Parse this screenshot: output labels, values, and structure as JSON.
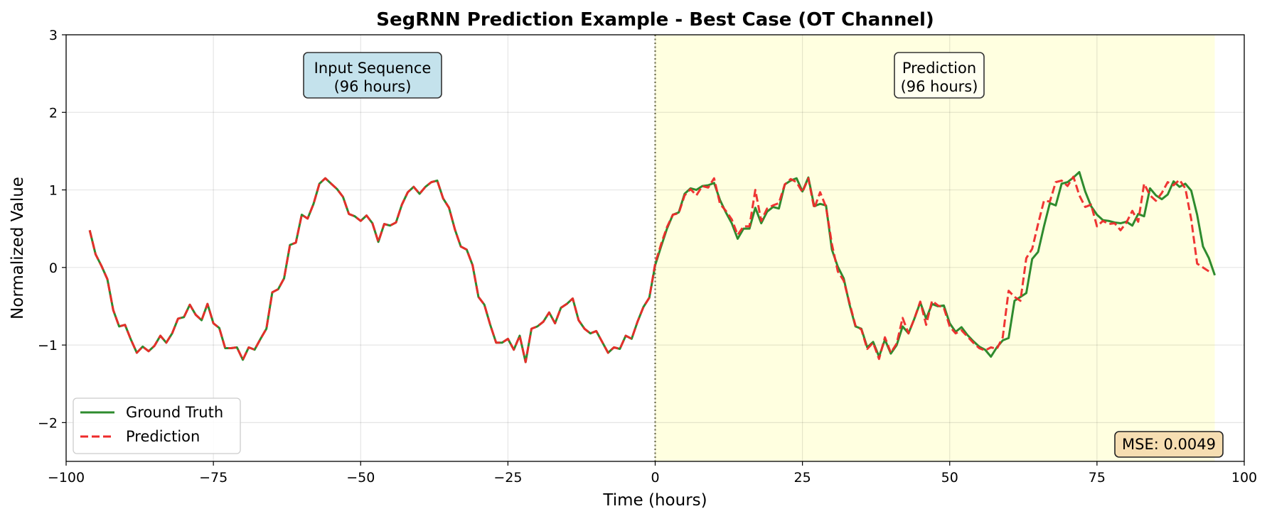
{
  "chart_data": {
    "type": "line",
    "title": "SegRNN Prediction Example - Best Case (OT Channel)",
    "xlabel": "Time (hours)",
    "ylabel": "Normalized Value",
    "xlim": [
      -100,
      100
    ],
    "ylim": [
      -2.5,
      3
    ],
    "xticks": [
      -100,
      -75,
      -50,
      -25,
      0,
      25,
      50,
      75,
      100
    ],
    "xtick_labels": [
      "−100",
      "−75",
      "−50",
      "−25",
      "0",
      "25",
      "50",
      "75",
      "100"
    ],
    "yticks": [
      -2,
      -1,
      0,
      1,
      2,
      3
    ],
    "ytick_labels": [
      "−2",
      "−1",
      "0",
      "1",
      "2",
      "3"
    ],
    "grid": true,
    "legend_position": "lower-left",
    "shaded_region": {
      "x": [
        0,
        95
      ],
      "color": "#ffffe0"
    },
    "split_line": {
      "x": 0,
      "color": "#6b6b4a"
    },
    "annotations": {
      "input_box": [
        "Input Sequence",
        "(96 hours)"
      ],
      "prediction_box": [
        "Prediction",
        "(96 hours)"
      ],
      "mse_box": "MSE: 0.0049"
    },
    "colors": {
      "ground_truth": "#2e8b2e",
      "prediction": "#ee2a2a",
      "input_box": "#c4e2ec",
      "prediction_box": "#fffff0",
      "mse_box": "#f6deb2"
    },
    "series": [
      {
        "name": "Ground Truth",
        "style": "solid",
        "x_start": -96,
        "values": [
          0.48,
          0.17,
          0.02,
          -0.15,
          -0.55,
          -0.76,
          -0.74,
          -0.93,
          -1.1,
          -1.02,
          -1.08,
          -1.01,
          -0.88,
          -0.97,
          -0.85,
          -0.66,
          -0.64,
          -0.48,
          -0.61,
          -0.68,
          -0.47,
          -0.72,
          -0.78,
          -1.04,
          -1.04,
          -1.03,
          -1.19,
          -1.03,
          -1.06,
          -0.92,
          -0.79,
          -0.32,
          -0.28,
          -0.14,
          0.29,
          0.32,
          0.68,
          0.63,
          0.82,
          1.08,
          1.15,
          1.08,
          1.01,
          0.91,
          0.69,
          0.66,
          0.6,
          0.67,
          0.57,
          0.33,
          0.56,
          0.54,
          0.58,
          0.81,
          0.97,
          1.04,
          0.95,
          1.04,
          1.1,
          1.12,
          0.89,
          0.77,
          0.49,
          0.27,
          0.23,
          0.03,
          -0.38,
          -0.48,
          -0.74,
          -0.97,
          -0.97,
          -0.92,
          -1.06,
          -0.88,
          -1.22,
          -0.79,
          -0.76,
          -0.7,
          -0.58,
          -0.72,
          -0.52,
          -0.47,
          -0.4,
          -0.68,
          -0.79,
          -0.85,
          -0.82,
          -0.96,
          -1.1,
          -1.03,
          -1.05,
          -0.88,
          -0.92,
          -0.7,
          -0.51,
          -0.39,
          0.03,
          0.27,
          0.5,
          0.68,
          0.71,
          0.95,
          1.02,
          1.0,
          1.05,
          1.06,
          1.09,
          0.87,
          0.71,
          0.57,
          0.37,
          0.5,
          0.5,
          0.77,
          0.57,
          0.72,
          0.78,
          0.76,
          1.07,
          1.12,
          1.15,
          0.98,
          1.16,
          0.79,
          0.82,
          0.8,
          0.23,
          0.01,
          -0.14,
          -0.48,
          -0.76,
          -0.79,
          -1.03,
          -0.96,
          -1.15,
          -0.93,
          -1.11,
          -1.0,
          -0.76,
          -0.85,
          -0.66,
          -0.45,
          -0.66,
          -0.47,
          -0.5,
          -0.49,
          -0.72,
          -0.83,
          -0.77,
          -0.87,
          -0.95,
          -1.02,
          -1.06,
          -1.15,
          -1.03,
          -0.94,
          -0.91,
          -0.43,
          -0.38,
          -0.33,
          0.11,
          0.2,
          0.53,
          0.83,
          0.8,
          1.08,
          1.1,
          1.16,
          1.23,
          0.98,
          0.79,
          0.68,
          0.61,
          0.6,
          0.58,
          0.57,
          0.59,
          0.54,
          0.69,
          0.66,
          1.02,
          0.93,
          0.88,
          0.94,
          1.11,
          1.04,
          1.08,
          0.99,
          0.68,
          0.27,
          0.12,
          -0.1
        ]
      },
      {
        "name": "Prediction",
        "style": "dashed",
        "x_start": -96,
        "values": [
          0.48,
          0.17,
          0.02,
          -0.15,
          -0.55,
          -0.76,
          -0.74,
          -0.93,
          -1.1,
          -1.02,
          -1.08,
          -1.01,
          -0.88,
          -0.97,
          -0.85,
          -0.66,
          -0.64,
          -0.48,
          -0.61,
          -0.68,
          -0.47,
          -0.72,
          -0.78,
          -1.04,
          -1.04,
          -1.03,
          -1.19,
          -1.03,
          -1.06,
          -0.92,
          -0.79,
          -0.32,
          -0.28,
          -0.14,
          0.29,
          0.32,
          0.68,
          0.63,
          0.82,
          1.08,
          1.15,
          1.08,
          1.01,
          0.91,
          0.69,
          0.66,
          0.6,
          0.67,
          0.57,
          0.33,
          0.56,
          0.54,
          0.58,
          0.81,
          0.97,
          1.04,
          0.95,
          1.04,
          1.1,
          1.12,
          0.89,
          0.77,
          0.49,
          0.27,
          0.23,
          0.03,
          -0.38,
          -0.48,
          -0.74,
          -0.97,
          -0.97,
          -0.92,
          -1.06,
          -0.88,
          -1.22,
          -0.79,
          -0.76,
          -0.7,
          -0.58,
          -0.72,
          -0.52,
          -0.47,
          -0.4,
          -0.68,
          -0.79,
          -0.85,
          -0.82,
          -0.96,
          -1.1,
          -1.03,
          -1.05,
          -0.88,
          -0.92,
          -0.7,
          -0.51,
          -0.39,
          0.05,
          0.3,
          0.52,
          0.68,
          0.7,
          0.93,
          1.01,
          0.93,
          1.05,
          1.03,
          1.15,
          0.82,
          0.73,
          0.62,
          0.42,
          0.53,
          0.53,
          1.0,
          0.6,
          0.76,
          0.8,
          0.83,
          1.07,
          1.14,
          1.1,
          0.97,
          1.15,
          0.76,
          0.97,
          0.78,
          0.3,
          -0.05,
          -0.17,
          -0.46,
          -0.75,
          -0.8,
          -1.05,
          -0.97,
          -1.18,
          -0.9,
          -1.1,
          -0.98,
          -0.65,
          -0.85,
          -0.66,
          -0.44,
          -0.74,
          -0.43,
          -0.49,
          -0.52,
          -0.76,
          -0.85,
          -0.81,
          -0.89,
          -0.97,
          -1.04,
          -1.07,
          -1.03,
          -1.05,
          -0.9,
          -0.3,
          -0.38,
          -0.43,
          0.12,
          0.24,
          0.56,
          0.86,
          0.85,
          1.1,
          1.12,
          1.05,
          1.17,
          0.93,
          0.78,
          0.81,
          0.53,
          0.6,
          0.56,
          0.57,
          0.48,
          0.58,
          0.73,
          0.59,
          1.08,
          0.93,
          0.86,
          0.96,
          1.1,
          1.06,
          1.13,
          1.02,
          0.62,
          0.05,
          0.0,
          -0.05
        ]
      }
    ],
    "legend": [
      {
        "label": "Ground Truth",
        "series": 0
      },
      {
        "label": "Prediction",
        "series": 1
      }
    ]
  }
}
